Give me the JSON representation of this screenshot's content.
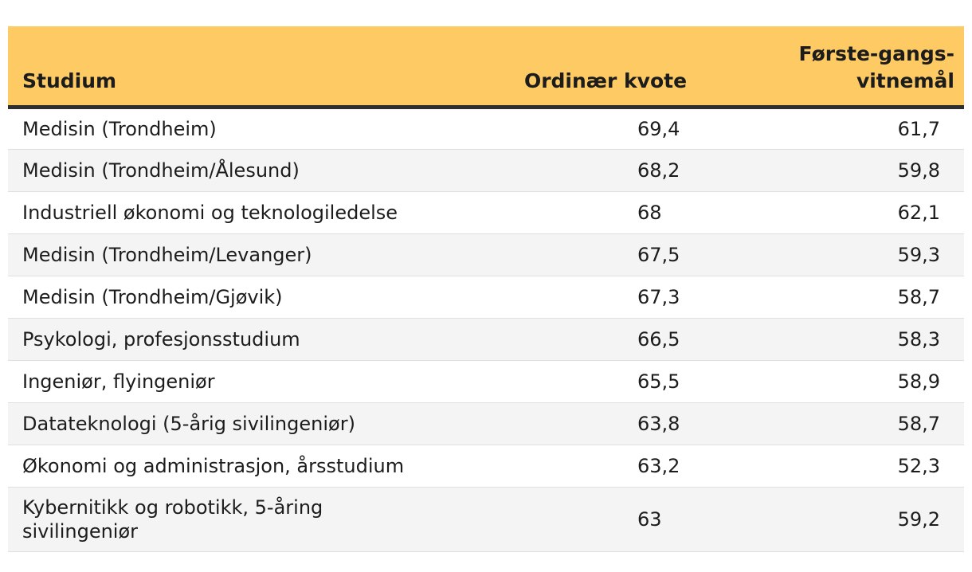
{
  "chart_data": {
    "type": "table",
    "columns": [
      {
        "id": "studium",
        "label": "Studium"
      },
      {
        "id": "ordinaer_kvote",
        "label": "Ordinær kvote"
      },
      {
        "id": "forstegangsvitnemal",
        "label": "Første-gangs-\nvitnemål"
      }
    ],
    "rows": [
      {
        "studium": "Medisin (Trondheim)",
        "ordinaer_kvote": "69,4",
        "forstegangsvitnemal": "61,7"
      },
      {
        "studium": "Medisin (Trondheim/Ålesund)",
        "ordinaer_kvote": "68,2",
        "forstegangsvitnemal": "59,8"
      },
      {
        "studium": "Industriell økonomi og teknologiledelse",
        "ordinaer_kvote": "68",
        "forstegangsvitnemal": "62,1"
      },
      {
        "studium": "Medisin (Trondheim/Levanger)",
        "ordinaer_kvote": "67,5",
        "forstegangsvitnemal": "59,3"
      },
      {
        "studium": "Medisin (Trondheim/Gjøvik)",
        "ordinaer_kvote": "67,3",
        "forstegangsvitnemal": "58,7"
      },
      {
        "studium": "Psykologi, profesjonsstudium",
        "ordinaer_kvote": "66,5",
        "forstegangsvitnemal": "58,3"
      },
      {
        "studium": "Ingeniør, flyingeniør",
        "ordinaer_kvote": "65,5",
        "forstegangsvitnemal": "58,9"
      },
      {
        "studium": "Datateknologi (5-årig sivilingeniør)",
        "ordinaer_kvote": "63,8",
        "forstegangsvitnemal": "58,7"
      },
      {
        "studium": "Økonomi og administrasjon, årsstudium",
        "ordinaer_kvote": "63,2",
        "forstegangsvitnemal": "52,3"
      },
      {
        "studium": "Kybernitikk og robotikk, 5-åring\nsivilingeniør",
        "ordinaer_kvote": "63",
        "forstegangsvitnemal": "59,2"
      }
    ]
  },
  "colors": {
    "header_bg": "#fdca64",
    "header_border": "#2e2e2e",
    "row_alt_bg": "#f4f4f4",
    "row_divider": "#e0e0e0",
    "text": "#1c1c1c"
  }
}
